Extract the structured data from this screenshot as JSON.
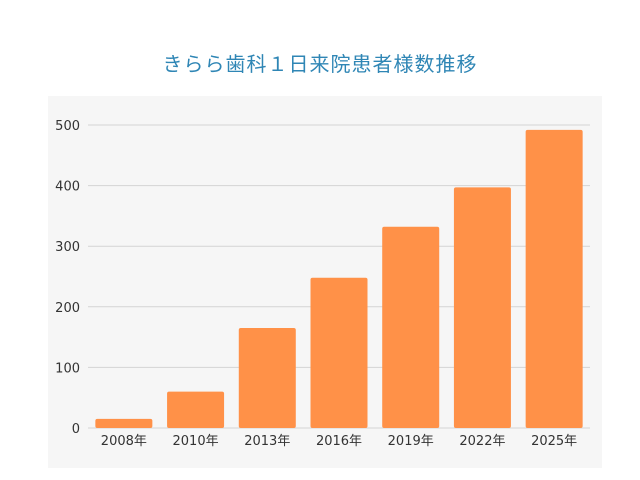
{
  "chart_data": {
    "type": "bar",
    "title": "きらら歯科１日来院患者様数推移",
    "xlabel": "",
    "ylabel": "",
    "categories": [
      "2008年",
      "2010年",
      "2013年",
      "2016年",
      "2019年",
      "2022年",
      "2025年"
    ],
    "values": [
      15,
      60,
      165,
      248,
      332,
      397,
      492
    ],
    "ylim": [
      0,
      500
    ],
    "yticks": [
      0,
      100,
      200,
      300,
      400,
      500
    ],
    "grid": true,
    "legend": "none",
    "bar_color": "#ff9148",
    "title_color": "#2f86b5"
  }
}
